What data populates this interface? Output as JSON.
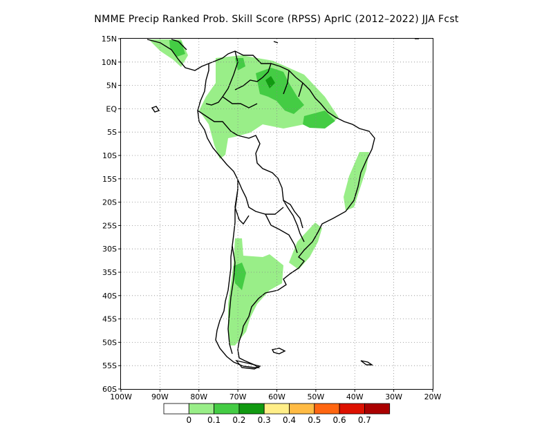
{
  "title": "NMME Precip Ranked Prob. Skill Score (RPSS) AprIC (2012–2022) JJA Fcst",
  "lat_labels": [
    "15N",
    "10N",
    "5N",
    "EQ",
    "5S",
    "10S",
    "15S",
    "20S",
    "25S",
    "30S",
    "35S",
    "40S",
    "45S",
    "50S",
    "55S",
    "60S"
  ],
  "lon_labels": [
    "100W",
    "90W",
    "80W",
    "70W",
    "60W",
    "50W",
    "40W",
    "30W",
    "20W"
  ],
  "grid": "dotted",
  "colorbar": {
    "labels": [
      "0",
      "0.1",
      "0.2",
      "0.3",
      "0.4",
      "0.5",
      "0.6",
      "0.7"
    ],
    "colors": [
      "#ffffff",
      "#99ee88",
      "#44cc44",
      "#119911",
      "#ffee88",
      "#ffbb44",
      "#ff6611",
      "#dd1100",
      "#aa0000"
    ]
  }
}
